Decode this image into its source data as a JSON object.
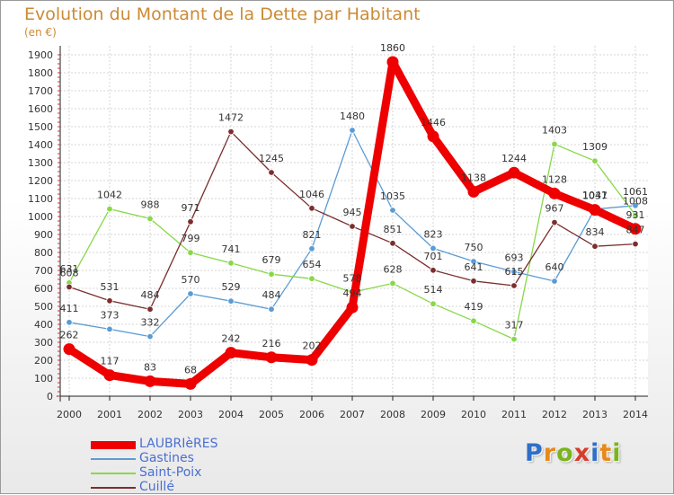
{
  "title": "Evolution du Montant de la Dette par Habitant",
  "unit_label": "(en €)",
  "logo": {
    "text": "Proxiti",
    "letters": [
      {
        "ch": "P",
        "color": "#2f6fc8"
      },
      {
        "ch": "r",
        "color": "#e88a1a"
      },
      {
        "ch": "o",
        "color": "#7ab51d"
      },
      {
        "ch": "x",
        "color": "#d93b2b"
      },
      {
        "ch": "i",
        "color": "#2f6fc8"
      },
      {
        "ch": "t",
        "color": "#e88a1a"
      },
      {
        "ch": "i",
        "color": "#7ab51d"
      }
    ]
  },
  "chart_data": {
    "type": "line",
    "title": "Evolution du Montant de la Dette par Habitant",
    "subtitle": "(en €)",
    "xlabel": "",
    "ylabel": "",
    "x": [
      "2000",
      "2001",
      "2002",
      "2003",
      "2004",
      "2005",
      "2006",
      "2007",
      "2008",
      "2009",
      "2010",
      "2011",
      "2012",
      "2013",
      "2014"
    ],
    "ylim": [
      0,
      1900
    ],
    "yticks": [
      0,
      100,
      200,
      300,
      400,
      500,
      600,
      700,
      800,
      900,
      1000,
      1100,
      1200,
      1300,
      1400,
      1500,
      1600,
      1700,
      1800,
      1900
    ],
    "grid": true,
    "legend_position": "bottom-left",
    "series": [
      {
        "name": "LAUBRIèRES",
        "color": "#ee0000",
        "emphasis": true,
        "values": [
          262,
          117,
          83,
          68,
          242,
          216,
          202,
          494,
          1860,
          1446,
          1138,
          1244,
          1128,
          1037,
          931
        ]
      },
      {
        "name": "Gastines",
        "color": "#5b9bd5",
        "emphasis": false,
        "values": [
          411,
          373,
          332,
          570,
          529,
          484,
          821,
          1480,
          1035,
          823,
          750,
          693,
          640,
          1041,
          1061
        ]
      },
      {
        "name": "Saint-Poix",
        "color": "#88d848",
        "emphasis": false,
        "values": [
          631,
          1042,
          988,
          799,
          741,
          679,
          654,
          578,
          628,
          514,
          419,
          317,
          1403,
          1309,
          1008
        ]
      },
      {
        "name": "Cuillé",
        "color": "#7b2e2e",
        "emphasis": false,
        "values": [
          608,
          531,
          484,
          971,
          1472,
          1245,
          1046,
          945,
          851,
          701,
          641,
          615,
          967,
          834,
          847
        ]
      }
    ]
  }
}
